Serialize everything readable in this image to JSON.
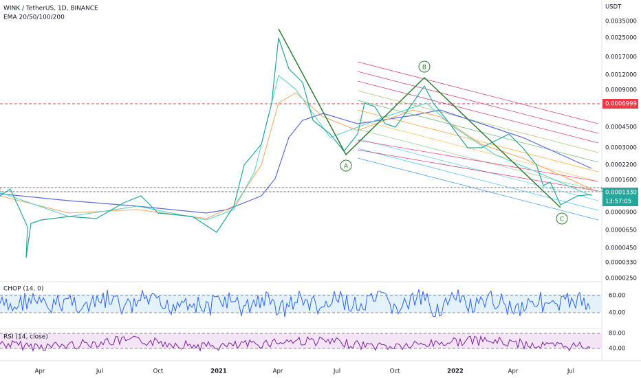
{
  "header": {
    "symbol": "WINK / TetherUS, 1D, BINANCE",
    "indicator": "EMA 20/50/100/200"
  },
  "price_axis": {
    "currency": "USDT",
    "labels": [
      "0.0035000",
      "0.0025000",
      "0.0017000",
      "0.0012000",
      "0.0009000",
      "0.0004500",
      "0.0003000",
      "0.0002200",
      "0.0001600",
      "0.0000900",
      "0.0000650",
      "0.0000450",
      "0.0000330",
      "0.0000250"
    ],
    "alert_price": "0.0006999",
    "last_price": "0.0001330",
    "countdown": "13:57:05"
  },
  "pattern_labels": [
    "A",
    "B",
    "C"
  ],
  "chop": {
    "title": "CHOP (14, 0)",
    "levels": [
      "60.00",
      "40.00"
    ]
  },
  "rsi": {
    "title": "RSI (14, close)",
    "levels": [
      "80.00",
      "40.00"
    ]
  },
  "time_axis": [
    "Apr",
    "Jul",
    "Oct",
    "2021",
    "Apr",
    "Jul",
    "Oct",
    "2022",
    "Apr",
    "Jul"
  ]
}
